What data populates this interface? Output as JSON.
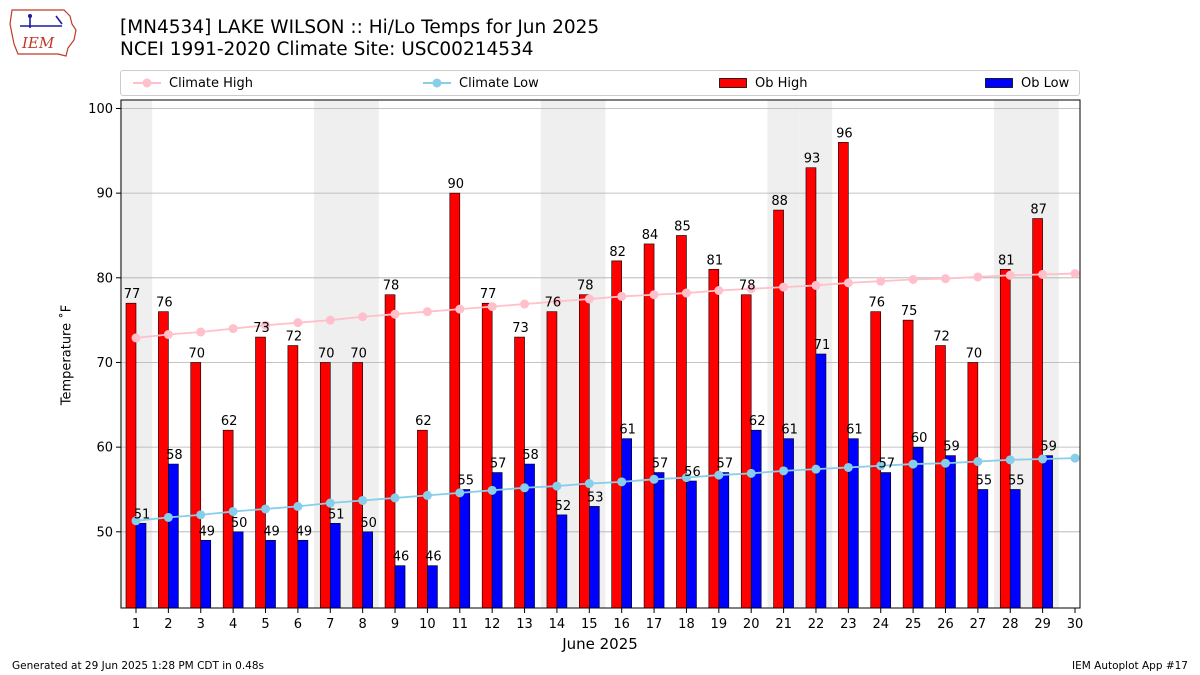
{
  "title": {
    "line1": "[MN4534] LAKE WILSON :: Hi/Lo Temps for Jun 2025",
    "line2": "NCEI 1991-2020 Climate Site: USC00214534"
  },
  "logo": {
    "text": "IEM"
  },
  "legend": {
    "climate_high": "Climate High",
    "climate_low": "Climate Low",
    "ob_high": "Ob High",
    "ob_low": "Ob Low"
  },
  "colors": {
    "ob_high": "#ff0000",
    "ob_low": "#0000ff",
    "climate_high": "#ffc0cb",
    "climate_low": "#87ceeb",
    "weekend_band": "#efefef"
  },
  "footer": {
    "left": "Generated at 29 Jun 2025 1:28 PM CDT in 0.48s",
    "right": "IEM Autoplot App #17"
  },
  "chart_data": {
    "type": "bar",
    "xlabel": "June 2025",
    "ylabel": "Temperature ˚F",
    "ylim": [
      41,
      101
    ],
    "yticks": [
      50,
      60,
      70,
      80,
      90,
      100
    ],
    "grid": "horizontal",
    "legend_position": "top",
    "categories": [
      "1",
      "2",
      "3",
      "4",
      "5",
      "6",
      "7",
      "8",
      "9",
      "10",
      "11",
      "12",
      "13",
      "14",
      "15",
      "16",
      "17",
      "18",
      "19",
      "20",
      "21",
      "22",
      "23",
      "24",
      "25",
      "26",
      "27",
      "28",
      "29",
      "30"
    ],
    "series": [
      {
        "name": "Ob High",
        "kind": "bar",
        "values": [
          77,
          76,
          70,
          62,
          73,
          72,
          70,
          70,
          78,
          62,
          90,
          77,
          73,
          76,
          78,
          82,
          84,
          85,
          81,
          78,
          88,
          93,
          96,
          76,
          75,
          72,
          70,
          81,
          87,
          null
        ]
      },
      {
        "name": "Ob Low",
        "kind": "bar",
        "values": [
          51,
          58,
          49,
          50,
          49,
          49,
          51,
          50,
          46,
          46,
          55,
          57,
          58,
          52,
          53,
          61,
          57,
          56,
          57,
          62,
          61,
          71,
          61,
          57,
          60,
          59,
          55,
          55,
          59,
          null
        ]
      },
      {
        "name": "Climate High",
        "kind": "line",
        "values": [
          72.9,
          73.3,
          73.6,
          74.0,
          74.4,
          74.7,
          75.0,
          75.4,
          75.7,
          76.0,
          76.3,
          76.6,
          76.9,
          77.2,
          77.5,
          77.8,
          78.0,
          78.2,
          78.5,
          78.7,
          78.9,
          79.1,
          79.4,
          79.6,
          79.8,
          79.9,
          80.1,
          80.3,
          80.4,
          80.5
        ]
      },
      {
        "name": "Climate Low",
        "kind": "line",
        "values": [
          51.3,
          51.7,
          52.0,
          52.4,
          52.7,
          53.0,
          53.4,
          53.7,
          54.0,
          54.3,
          54.6,
          54.9,
          55.2,
          55.4,
          55.7,
          55.9,
          56.2,
          56.4,
          56.7,
          56.9,
          57.2,
          57.4,
          57.6,
          57.8,
          58.0,
          58.1,
          58.3,
          58.5,
          58.6,
          58.7
        ]
      }
    ],
    "weekend_days": [
      1,
      7,
      8,
      14,
      15,
      21,
      22,
      28,
      29
    ]
  }
}
